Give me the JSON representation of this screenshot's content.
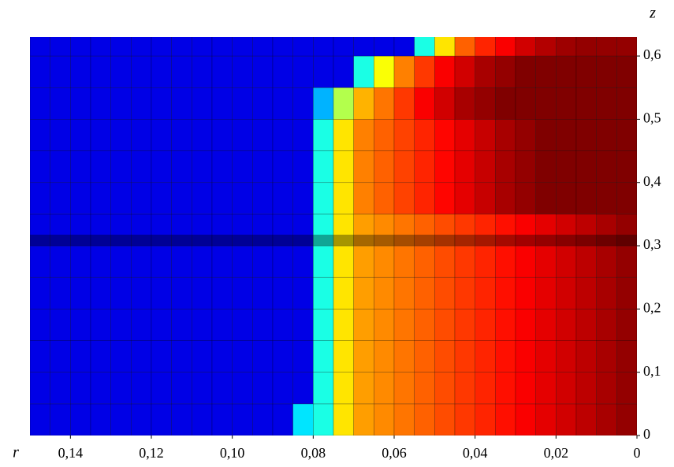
{
  "chart_data": {
    "type": "heatmap",
    "xlabel": "r",
    "ylabel": "z",
    "xlim": [
      0.15,
      0
    ],
    "ylim": [
      0,
      0.63
    ],
    "xticks": [
      {
        "value": 0.14,
        "label": "0,14"
      },
      {
        "value": 0.12,
        "label": "0,12"
      },
      {
        "value": 0.1,
        "label": "0,10"
      },
      {
        "value": 0.08,
        "label": "0,08"
      },
      {
        "value": 0.06,
        "label": "0,06"
      },
      {
        "value": 0.04,
        "label": "0,04"
      },
      {
        "value": 0.02,
        "label": "0,02"
      },
      0
    ],
    "yticks": [
      0,
      {
        "value": 0.1,
        "label": "0,1"
      },
      {
        "value": 0.2,
        "label": "0,2"
      },
      {
        "value": 0.3,
        "label": "0,3"
      },
      {
        "value": 0.4,
        "label": "0,4"
      },
      {
        "value": 0.5,
        "label": "0,5"
      },
      {
        "value": 0.6,
        "label": "0,6"
      }
    ],
    "colormap": "jet",
    "x": [
      0.1475,
      0.1425,
      0.1375,
      0.1325,
      0.1275,
      0.1225,
      0.1175,
      0.1125,
      0.1075,
      0.1025,
      0.0975,
      0.0925,
      0.0875,
      0.0825,
      0.0775,
      0.0725,
      0.0675,
      0.0625,
      0.0575,
      0.0525,
      0.0475,
      0.0425,
      0.0375,
      0.0325,
      0.0275,
      0.0225,
      0.0175,
      0.0125,
      0.0075,
      0.0025
    ],
    "y": [
      0.025,
      0.075,
      0.125,
      0.175,
      0.225,
      0.275,
      0.325,
      0.375,
      0.425,
      0.475,
      0.525,
      0.575,
      0.625
    ],
    "values": [
      [
        0.1,
        0.1,
        0.1,
        0.1,
        0.1,
        0.1,
        0.1,
        0.1,
        0.1,
        0.1,
        0.1,
        0.1,
        0.1,
        0.35,
        0.4,
        0.65,
        0.72,
        0.74,
        0.76,
        0.78,
        0.8,
        0.82,
        0.84,
        0.86,
        0.88,
        0.9,
        0.92,
        0.94,
        0.96,
        0.98
      ],
      [
        0.1,
        0.1,
        0.1,
        0.1,
        0.1,
        0.1,
        0.1,
        0.1,
        0.1,
        0.1,
        0.1,
        0.1,
        0.1,
        0.1,
        0.4,
        0.65,
        0.72,
        0.74,
        0.76,
        0.78,
        0.8,
        0.82,
        0.84,
        0.86,
        0.88,
        0.9,
        0.92,
        0.94,
        0.96,
        0.98
      ],
      [
        0.1,
        0.1,
        0.1,
        0.1,
        0.1,
        0.1,
        0.1,
        0.1,
        0.1,
        0.1,
        0.1,
        0.1,
        0.1,
        0.1,
        0.4,
        0.65,
        0.72,
        0.74,
        0.76,
        0.78,
        0.8,
        0.82,
        0.84,
        0.86,
        0.88,
        0.9,
        0.92,
        0.94,
        0.96,
        0.98
      ],
      [
        0.1,
        0.1,
        0.1,
        0.1,
        0.1,
        0.1,
        0.1,
        0.1,
        0.1,
        0.1,
        0.1,
        0.1,
        0.1,
        0.1,
        0.4,
        0.65,
        0.72,
        0.74,
        0.76,
        0.78,
        0.8,
        0.82,
        0.84,
        0.86,
        0.88,
        0.9,
        0.92,
        0.94,
        0.96,
        0.98
      ],
      [
        0.1,
        0.1,
        0.1,
        0.1,
        0.1,
        0.1,
        0.1,
        0.1,
        0.1,
        0.1,
        0.1,
        0.1,
        0.1,
        0.1,
        0.4,
        0.65,
        0.72,
        0.74,
        0.76,
        0.78,
        0.8,
        0.82,
        0.84,
        0.86,
        0.88,
        0.9,
        0.92,
        0.94,
        0.96,
        0.98
      ],
      [
        0.1,
        0.1,
        0.1,
        0.1,
        0.1,
        0.1,
        0.1,
        0.1,
        0.1,
        0.1,
        0.1,
        0.1,
        0.1,
        0.1,
        0.4,
        0.65,
        0.72,
        0.74,
        0.76,
        0.78,
        0.8,
        0.82,
        0.84,
        0.86,
        0.88,
        0.9,
        0.92,
        0.94,
        0.96,
        0.98
      ],
      [
        0.1,
        0.1,
        0.1,
        0.1,
        0.1,
        0.1,
        0.1,
        0.1,
        0.1,
        0.1,
        0.1,
        0.1,
        0.1,
        0.1,
        0.4,
        0.65,
        0.72,
        0.74,
        0.76,
        0.78,
        0.8,
        0.82,
        0.84,
        0.86,
        0.88,
        0.9,
        0.92,
        0.94,
        0.96,
        0.98
      ],
      [
        0.1,
        0.1,
        0.1,
        0.1,
        0.1,
        0.1,
        0.1,
        0.1,
        0.1,
        0.1,
        0.1,
        0.1,
        0.1,
        0.1,
        0.4,
        0.65,
        0.75,
        0.78,
        0.81,
        0.84,
        0.87,
        0.9,
        0.93,
        0.96,
        0.98,
        1,
        1,
        1,
        1,
        1
      ],
      [
        0.1,
        0.1,
        0.1,
        0.1,
        0.1,
        0.1,
        0.1,
        0.1,
        0.1,
        0.1,
        0.1,
        0.1,
        0.1,
        0.1,
        0.4,
        0.65,
        0.75,
        0.78,
        0.81,
        0.84,
        0.87,
        0.9,
        0.93,
        0.96,
        0.98,
        1,
        1,
        1,
        1,
        1
      ],
      [
        0.1,
        0.1,
        0.1,
        0.1,
        0.1,
        0.1,
        0.1,
        0.1,
        0.1,
        0.1,
        0.1,
        0.1,
        0.1,
        0.1,
        0.4,
        0.65,
        0.75,
        0.78,
        0.81,
        0.84,
        0.87,
        0.9,
        0.93,
        0.96,
        0.98,
        1,
        1,
        1,
        1,
        1
      ],
      [
        0.1,
        0.1,
        0.1,
        0.1,
        0.1,
        0.1,
        0.1,
        0.1,
        0.1,
        0.1,
        0.1,
        0.1,
        0.1,
        0.1,
        0.3,
        0.55,
        0.7,
        0.76,
        0.82,
        0.88,
        0.92,
        0.96,
        0.98,
        1,
        1,
        1,
        1,
        1,
        1,
        1
      ],
      [
        0.1,
        0.1,
        0.1,
        0.1,
        0.1,
        0.1,
        0.1,
        0.1,
        0.1,
        0.1,
        0.1,
        0.1,
        0.1,
        0.1,
        0.1,
        0.1,
        0.4,
        0.62,
        0.75,
        0.82,
        0.88,
        0.92,
        0.96,
        0.98,
        1,
        1,
        1,
        1,
        1,
        1
      ],
      [
        0.1,
        0.1,
        0.1,
        0.1,
        0.1,
        0.1,
        0.1,
        0.1,
        0.1,
        0.1,
        0.1,
        0.1,
        0.1,
        0.1,
        0.1,
        0.1,
        0.1,
        0.1,
        0.1,
        0.4,
        0.65,
        0.78,
        0.84,
        0.88,
        0.92,
        0.95,
        0.97,
        0.98,
        0.98,
        0.98
      ]
    ]
  }
}
